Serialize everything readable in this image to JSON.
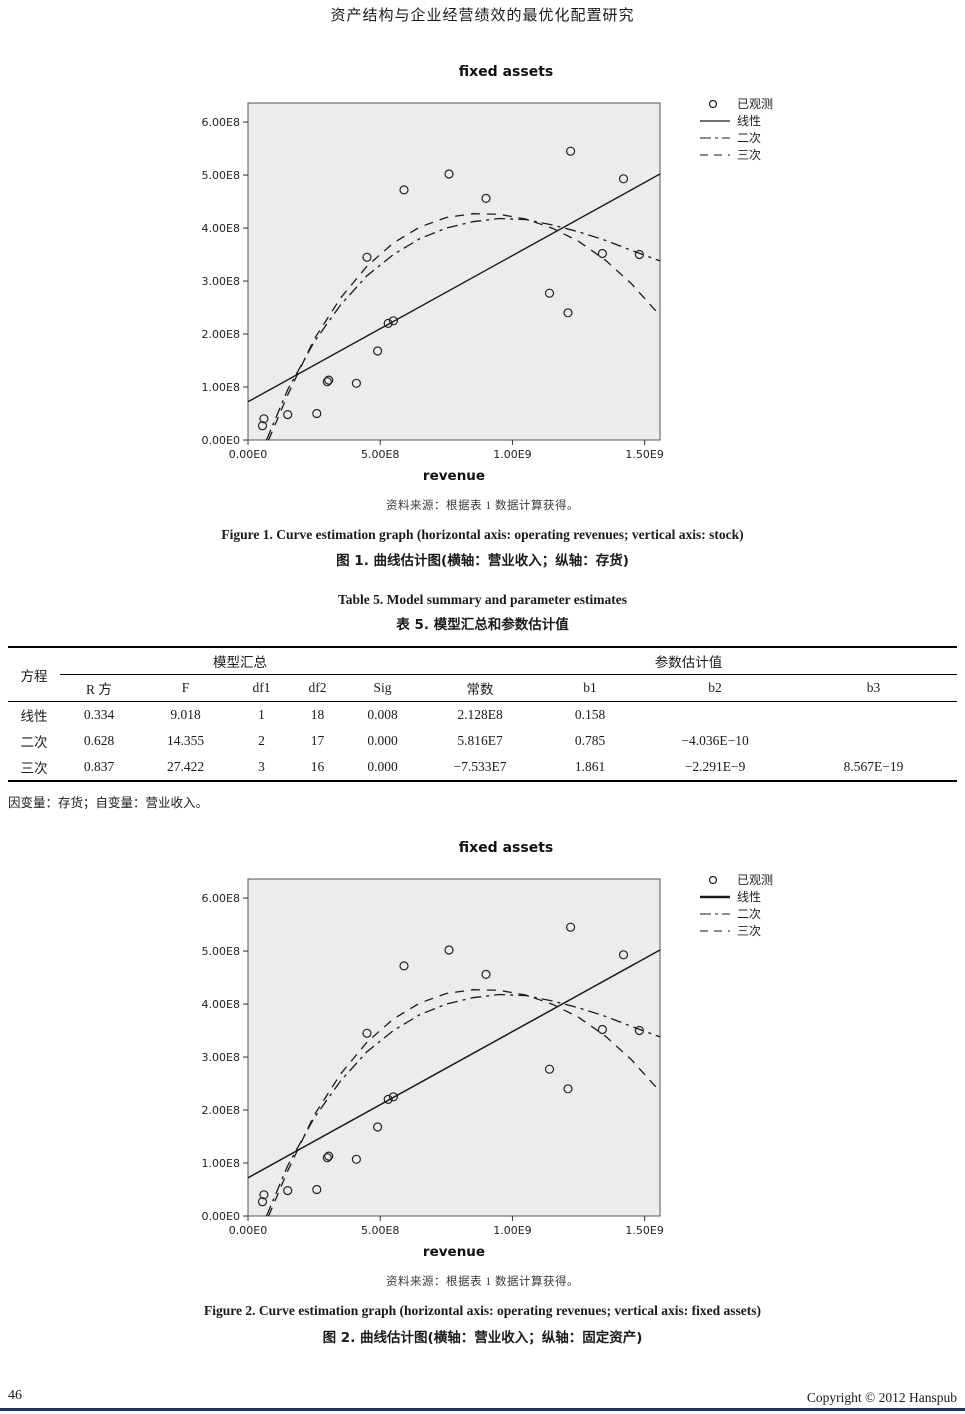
{
  "page": {
    "header_title": "资产结构与企业经营绩效的最优化配置研究",
    "footer": {
      "page_number": "46",
      "copyright": "Copyright © 2012 Hanspub"
    },
    "accent_color": "#17365d"
  },
  "figure1": {
    "source_note": "资料来源：根据表 1 数据计算获得。",
    "caption_en": "Figure 1. Curve estimation graph (horizontal axis: operating revenues; vertical axis: stock)",
    "caption_zh": "图 1. 曲线估计图(横轴：营业收入；纵轴：存货)"
  },
  "figure2": {
    "source_note": "资料来源：根据表 1 数据计算获得。",
    "caption_en": "Figure 2. Curve estimation graph (horizontal axis: operating revenues; vertical axis: fixed assets)",
    "caption_zh": "图 2. 曲线估计图(横轴：营业收入；纵轴：固定资产)"
  },
  "table5": {
    "title_en": "Table 5. Model summary and parameter estimates",
    "title_zh": "表 5. 模型汇总和参数估计值",
    "row_header": "方程",
    "group1": "模型汇总",
    "group2": "参数估计值",
    "columns": [
      "R 方",
      "F",
      "df1",
      "df2",
      "Sig",
      "常数",
      "b1",
      "b2",
      "b3"
    ],
    "rows": [
      {
        "label": "线性",
        "values": [
          "0.334",
          "9.018",
          "1",
          "18",
          "0.008",
          "2.128E8",
          "0.158",
          "",
          ""
        ]
      },
      {
        "label": "二次",
        "values": [
          "0.628",
          "14.355",
          "2",
          "17",
          "0.000",
          "5.816E7",
          "0.785",
          "−4.036E−10",
          ""
        ]
      },
      {
        "label": "三次",
        "values": [
          "0.837",
          "27.422",
          "3",
          "16",
          "0.000",
          "−7.533E7",
          "1.861",
          "−2.291E−9",
          "8.567E−19"
        ]
      }
    ],
    "footnote": "因变量：存货；自变量：营业收入。"
  },
  "chart_data": [
    {
      "type": "scatter",
      "title": "fixed assets",
      "xlabel": "revenue",
      "ylabel": "",
      "xlim": [
        0,
        1558000000.0
      ],
      "ylim": [
        0,
        636000000.0
      ],
      "grid": false,
      "legend_position": "top-right-outside",
      "x_tick_values": [
        0,
        500000000.0,
        1000000000.0,
        1500000000.0
      ],
      "x_ticks": [
        "0.00E0",
        "5.00E8",
        "1.00E9",
        "1.50E9"
      ],
      "y_tick_values": [
        0,
        100000000.0,
        200000000.0,
        300000000.0,
        400000000.0,
        500000000.0,
        600000000.0
      ],
      "y_ticks": [
        "0.00E0",
        "1.00E8",
        "2.00E8",
        "3.00E8",
        "4.00E8",
        "5.00E8",
        "6.00E8"
      ],
      "legend": [
        {
          "label": "已观测",
          "type": "marker"
        },
        {
          "label": "线性",
          "type": "line",
          "dash": "",
          "width": 1.3
        },
        {
          "label": "二次",
          "type": "line",
          "dash": "11 4 3 4",
          "width": 1.1
        },
        {
          "label": "三次",
          "type": "line",
          "dash": "8 6",
          "width": 1.1
        }
      ],
      "points": [
        [
          55000000.0,
          27000000.0
        ],
        [
          60000000.0,
          40000000.0
        ],
        [
          150000000.0,
          48000000.0
        ],
        [
          260000000.0,
          50000000.0
        ],
        [
          300000000.0,
          110000000.0
        ],
        [
          305000000.0,
          113000000.0
        ],
        [
          410000000.0,
          107000000.0
        ],
        [
          450000000.0,
          345000000.0
        ],
        [
          490000000.0,
          168000000.0
        ],
        [
          530000000.0,
          220000000.0
        ],
        [
          550000000.0,
          225000000.0
        ],
        [
          590000000.0,
          472000000.0
        ],
        [
          760000000.0,
          502000000.0
        ],
        [
          900000000.0,
          456000000.0
        ],
        [
          1140000000.0,
          277000000.0
        ],
        [
          1210000000.0,
          240000000.0
        ],
        [
          1220000000.0,
          545000000.0
        ],
        [
          1340000000.0,
          352000000.0
        ],
        [
          1420000000.0,
          493000000.0
        ],
        [
          1480000000.0,
          350000000.0
        ]
      ],
      "series": [
        {
          "name": "线性",
          "dash": "",
          "width": 1.4,
          "points": [
            [
              0,
              72000000.0
            ],
            [
              1558000000.0,
              502000000.0
            ]
          ]
        },
        {
          "name": "二次",
          "dash": "11 5 3 5",
          "width": 1.3,
          "points": [
            [
              70000000.0,
              0
            ],
            [
              150000000.0,
              95000000.0
            ],
            [
              250000000.0,
              185000000.0
            ],
            [
              350000000.0,
              255000000.0
            ],
            [
              450000000.0,
              310000000.0
            ],
            [
              550000000.0,
              350000000.0
            ],
            [
              650000000.0,
              380000000.0
            ],
            [
              750000000.0,
              400000000.0
            ],
            [
              850000000.0,
              412000000.0
            ],
            [
              950000000.0,
              418000000.0
            ],
            [
              1050000000.0,
              416000000.0
            ],
            [
              1150000000.0,
              406000000.0
            ],
            [
              1250000000.0,
              393000000.0
            ],
            [
              1350000000.0,
              377000000.0
            ],
            [
              1450000000.0,
              358000000.0
            ],
            [
              1558000000.0,
              338000000.0
            ]
          ]
        },
        {
          "name": "三次",
          "dash": "9 7",
          "width": 1.3,
          "points": [
            [
              78000000.0,
              0
            ],
            [
              150000000.0,
              85000000.0
            ],
            [
              250000000.0,
              190000000.0
            ],
            [
              350000000.0,
              268000000.0
            ],
            [
              450000000.0,
              328000000.0
            ],
            [
              550000000.0,
              372000000.0
            ],
            [
              650000000.0,
              402000000.0
            ],
            [
              750000000.0,
              420000000.0
            ],
            [
              850000000.0,
              427000000.0
            ],
            [
              950000000.0,
              426000000.0
            ],
            [
              1050000000.0,
              417000000.0
            ],
            [
              1150000000.0,
              400000000.0
            ],
            [
              1250000000.0,
              375000000.0
            ],
            [
              1350000000.0,
              340000000.0
            ],
            [
              1450000000.0,
              295000000.0
            ],
            [
              1558000000.0,
              235000000.0
            ]
          ]
        }
      ]
    },
    {
      "type": "scatter",
      "title": "fixed assets",
      "xlabel": "revenue",
      "ylabel": "",
      "xlim": [
        0,
        1558000000.0
      ],
      "ylim": [
        0,
        636000000.0
      ],
      "grid": false,
      "legend_position": "top-right-outside",
      "x_tick_values": [
        0,
        500000000.0,
        1000000000.0,
        1500000000.0
      ],
      "x_ticks": [
        "0.00E0",
        "5.00E8",
        "1.00E9",
        "1.50E9"
      ],
      "y_tick_values": [
        0,
        100000000.0,
        200000000.0,
        300000000.0,
        400000000.0,
        500000000.0,
        600000000.0
      ],
      "y_ticks": [
        "0.00E0",
        "1.00E8",
        "2.00E8",
        "3.00E8",
        "4.00E8",
        "5.00E8",
        "6.00E8"
      ],
      "legend": [
        {
          "label": "已观测",
          "type": "marker"
        },
        {
          "label": "线性",
          "type": "line",
          "dash": "",
          "width": 2.6
        },
        {
          "label": "二次",
          "type": "line",
          "dash": "11 4 3 4",
          "width": 1.1
        },
        {
          "label": "三次",
          "type": "line",
          "dash": "8 6",
          "width": 1.1
        }
      ],
      "points": [
        [
          55000000.0,
          27000000.0
        ],
        [
          60000000.0,
          40000000.0
        ],
        [
          150000000.0,
          48000000.0
        ],
        [
          260000000.0,
          50000000.0
        ],
        [
          300000000.0,
          110000000.0
        ],
        [
          305000000.0,
          113000000.0
        ],
        [
          410000000.0,
          107000000.0
        ],
        [
          450000000.0,
          345000000.0
        ],
        [
          490000000.0,
          168000000.0
        ],
        [
          530000000.0,
          220000000.0
        ],
        [
          550000000.0,
          225000000.0
        ],
        [
          590000000.0,
          472000000.0
        ],
        [
          760000000.0,
          502000000.0
        ],
        [
          900000000.0,
          456000000.0
        ],
        [
          1140000000.0,
          277000000.0
        ],
        [
          1210000000.0,
          240000000.0
        ],
        [
          1220000000.0,
          545000000.0
        ],
        [
          1340000000.0,
          352000000.0
        ],
        [
          1420000000.0,
          493000000.0
        ],
        [
          1480000000.0,
          350000000.0
        ]
      ],
      "series": [
        {
          "name": "线性",
          "dash": "",
          "width": 1.5,
          "points": [
            [
              0,
              72000000.0
            ],
            [
              1558000000.0,
              502000000.0
            ]
          ]
        },
        {
          "name": "二次",
          "dash": "11 5 3 5",
          "width": 1.3,
          "points": [
            [
              70000000.0,
              0
            ],
            [
              150000000.0,
              95000000.0
            ],
            [
              250000000.0,
              185000000.0
            ],
            [
              350000000.0,
              255000000.0
            ],
            [
              450000000.0,
              310000000.0
            ],
            [
              550000000.0,
              350000000.0
            ],
            [
              650000000.0,
              380000000.0
            ],
            [
              750000000.0,
              400000000.0
            ],
            [
              850000000.0,
              412000000.0
            ],
            [
              950000000.0,
              418000000.0
            ],
            [
              1050000000.0,
              416000000.0
            ],
            [
              1150000000.0,
              406000000.0
            ],
            [
              1250000000.0,
              393000000.0
            ],
            [
              1350000000.0,
              377000000.0
            ],
            [
              1450000000.0,
              358000000.0
            ],
            [
              1558000000.0,
              338000000.0
            ]
          ]
        },
        {
          "name": "三次",
          "dash": "9 7",
          "width": 1.3,
          "points": [
            [
              78000000.0,
              0
            ],
            [
              150000000.0,
              85000000.0
            ],
            [
              250000000.0,
              190000000.0
            ],
            [
              350000000.0,
              268000000.0
            ],
            [
              450000000.0,
              328000000.0
            ],
            [
              550000000.0,
              372000000.0
            ],
            [
              650000000.0,
              402000000.0
            ],
            [
              750000000.0,
              420000000.0
            ],
            [
              850000000.0,
              427000000.0
            ],
            [
              950000000.0,
              426000000.0
            ],
            [
              1050000000.0,
              417000000.0
            ],
            [
              1150000000.0,
              400000000.0
            ],
            [
              1250000000.0,
              375000000.0
            ],
            [
              1350000000.0,
              340000000.0
            ],
            [
              1450000000.0,
              295000000.0
            ],
            [
              1558000000.0,
              235000000.0
            ]
          ]
        }
      ]
    }
  ]
}
